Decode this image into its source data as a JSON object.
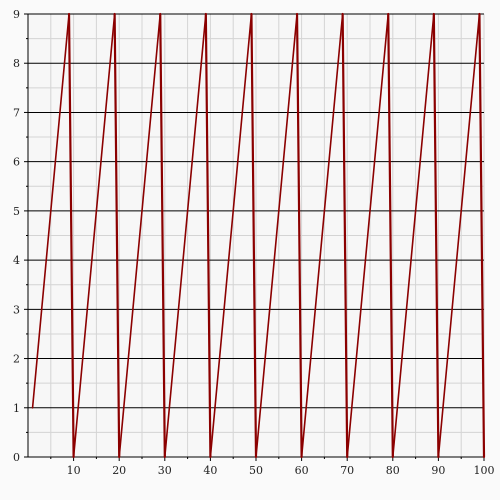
{
  "chart_data": {
    "type": "line",
    "title": "",
    "xlabel": "",
    "ylabel": "",
    "xlim": [
      0,
      100
    ],
    "ylim": [
      0,
      9
    ],
    "x_ticks": [
      10,
      20,
      30,
      40,
      50,
      60,
      70,
      80,
      90,
      100
    ],
    "x_tick_labels": [
      "10",
      "20",
      "30",
      "40",
      "50",
      "60",
      "70",
      "80",
      "90",
      "100"
    ],
    "y_ticks": [
      0,
      1,
      2,
      3,
      4,
      5,
      6,
      7,
      8,
      9
    ],
    "y_tick_labels": [
      "0",
      "1",
      "2",
      "3",
      "4",
      "5",
      "6",
      "7",
      "8",
      "9"
    ],
    "grid": true,
    "minor_grid": true,
    "series": [
      {
        "color": "#8b0000",
        "x": [
          1,
          9,
          10,
          19,
          20,
          29,
          30,
          39,
          40,
          49,
          50,
          59,
          60,
          69,
          70,
          79,
          80,
          89,
          90,
          99,
          100
        ],
        "y": [
          1,
          9,
          0,
          9,
          0,
          9,
          0,
          9,
          0,
          9,
          0,
          9,
          0,
          9,
          0,
          9,
          0,
          9,
          0,
          9,
          0
        ]
      }
    ]
  }
}
